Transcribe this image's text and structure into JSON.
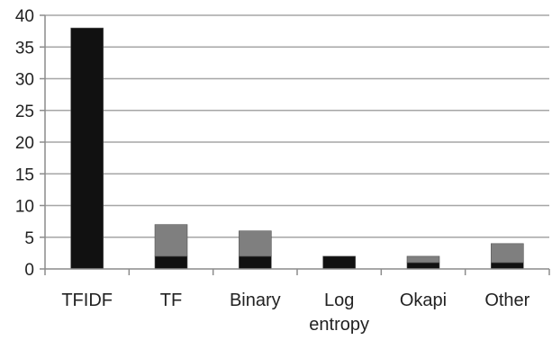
{
  "chart_data": {
    "type": "bar",
    "stacked": true,
    "categories": [
      [
        "TFIDF"
      ],
      [
        "TF"
      ],
      [
        "Binary"
      ],
      [
        "Log",
        "entropy"
      ],
      [
        "Okapi"
      ],
      [
        "Other"
      ]
    ],
    "series": [
      {
        "values": [
          38,
          2,
          2,
          2,
          1,
          1
        ],
        "color": "#111111"
      },
      {
        "values": [
          0,
          5,
          4,
          0,
          1,
          3
        ],
        "color": "#7f7f7f"
      }
    ],
    "title": "",
    "xlabel": "",
    "ylabel": "",
    "ylim": [
      0,
      40
    ],
    "yticks": [
      0,
      5,
      10,
      15,
      20,
      25,
      30,
      35,
      40
    ],
    "grid": true,
    "legend": "none"
  }
}
